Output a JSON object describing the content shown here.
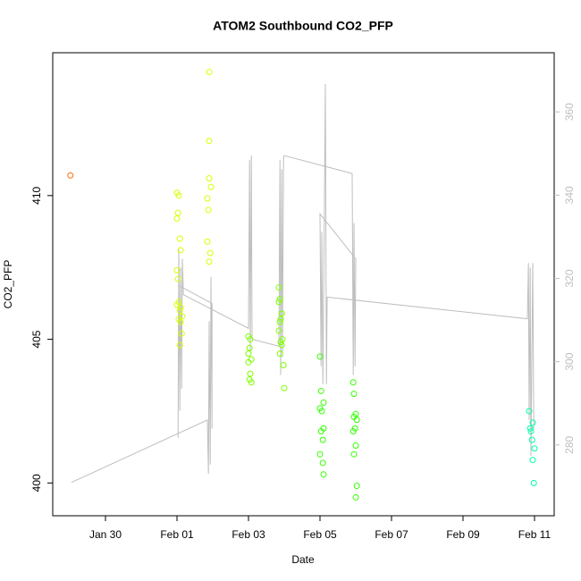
{
  "chart_data": {
    "type": "scatter",
    "title": "ATOM2 Southbound CO2_PFP",
    "x_label": "Date",
    "y_label": "CO2_PFP",
    "xlim": [
      -1.475,
      12.55
    ],
    "xticks": [
      {
        "value": 0,
        "label": "Jan 30"
      },
      {
        "value": 2,
        "label": "Feb 01"
      },
      {
        "value": 4,
        "label": "Feb 03"
      },
      {
        "value": 6,
        "label": "Feb 05"
      },
      {
        "value": 8,
        "label": "Feb 07"
      },
      {
        "value": 10,
        "label": "Feb 09"
      },
      {
        "value": 12,
        "label": "Feb 11"
      }
    ],
    "ylim": [
      398.86,
      414.97
    ],
    "yticks": [
      400,
      405,
      410
    ],
    "y2lim": [
      263.0,
      374.2
    ],
    "y2ticks": [
      280,
      300,
      320,
      340,
      360
    ],
    "series": [
      {
        "type": "scatter",
        "color": "#ff6a00",
        "x": [
          -0.98
        ],
        "values": [
          410.7
        ]
      },
      {
        "type": "scatter",
        "color": "#d9ff00",
        "x": [
          2.0,
          2.05,
          2.03,
          2.0,
          2.08,
          2.1,
          2.0,
          2.03,
          2.05,
          2.0,
          2.1,
          2.08,
          2.15,
          2.05,
          2.1,
          2.13,
          2.08,
          2.9,
          2.9,
          2.9,
          2.95,
          2.85,
          2.88,
          2.85,
          2.93,
          2.9
        ],
        "values": [
          410.1,
          410.0,
          409.4,
          409.2,
          408.5,
          408.1,
          407.4,
          407.1,
          406.3,
          406.2,
          406.1,
          406.0,
          405.8,
          405.7,
          405.6,
          405.2,
          404.8,
          414.3,
          411.9,
          410.6,
          410.3,
          409.9,
          409.5,
          408.4,
          408.0,
          407.7
        ]
      },
      {
        "type": "scatter",
        "color": "#80ff00",
        "x": [
          4.0,
          4.05,
          4.03,
          4.0,
          4.08,
          4.0,
          4.05,
          4.03,
          4.08,
          4.85,
          4.88,
          4.85,
          4.93,
          4.9,
          4.88,
          4.85,
          4.95,
          4.9,
          4.93,
          4.88,
          4.98,
          5.0
        ],
        "values": [
          405.1,
          405.0,
          404.7,
          404.5,
          404.3,
          404.2,
          403.8,
          403.6,
          403.5,
          406.8,
          406.4,
          406.3,
          405.9,
          405.7,
          405.6,
          405.3,
          405.0,
          404.9,
          404.8,
          404.5,
          404.1,
          403.3
        ]
      },
      {
        "type": "scatter",
        "color": "#33ff00",
        "x": [
          6.0,
          6.03,
          6.1,
          6.0,
          6.05,
          6.1,
          6.03,
          6.08,
          6.0,
          6.08,
          6.1,
          6.93,
          6.95,
          7.0,
          6.95,
          7.03,
          6.98,
          6.93,
          7.0,
          6.95,
          7.03,
          7.0
        ],
        "values": [
          404.4,
          403.2,
          402.8,
          402.6,
          402.5,
          401.9,
          401.8,
          401.5,
          401.0,
          400.7,
          400.3,
          403.5,
          403.1,
          402.4,
          402.3,
          402.2,
          401.9,
          401.8,
          401.3,
          401.0,
          399.9,
          399.5
        ]
      },
      {
        "type": "scatter",
        "color": "#00ffaa",
        "x": [
          11.85,
          11.95,
          11.88,
          11.9,
          11.93,
          12.0,
          11.95,
          11.98
        ],
        "values": [
          402.5,
          402.1,
          401.9,
          401.8,
          401.5,
          401.2,
          400.8,
          400.0
        ]
      },
      {
        "type": "line",
        "axis": "y2",
        "color": "#bebebe",
        "x": [
          -0.95,
          2.85,
          2.88,
          2.9,
          2.93,
          2.95,
          2.98,
          2.98,
          2.05,
          2.03,
          2.05,
          2.08,
          2.1,
          2.13,
          2.15,
          2.18,
          4.0,
          4.03,
          4.05,
          4.08,
          4.1,
          4.85,
          4.88,
          4.9,
          4.93,
          4.95,
          4.98,
          5.0,
          6.9,
          6.93,
          6.95,
          6.98,
          7.0,
          6.0,
          6.03,
          6.05,
          6.08,
          6.13,
          6.15,
          6.18,
          6.2,
          11.8,
          11.83,
          11.85,
          11.88,
          11.9,
          11.95,
          11.98
        ],
        "values": [
          271.0,
          286.0,
          273.1,
          309.7,
          275.3,
          320.4,
          283.9,
          314.0,
          318.3,
          281.7,
          326.9,
          288.2,
          322.6,
          293.5,
          324.7,
          316.1,
          308.0,
          348.4,
          302.2,
          349.5,
          305.4,
          303.7,
          348.4,
          296.8,
          346.2,
          301.1,
          348.8,
          349.5,
          345.2,
          296.8,
          333.3,
          298.9,
          324.7,
          335.5,
          298.9,
          331.2,
          294.6,
          344.1,
          366.7,
          294.6,
          315.5,
          310.3,
          323.7,
          286.0,
          322.6,
          277.4,
          323.7,
          283.9
        ]
      }
    ]
  }
}
